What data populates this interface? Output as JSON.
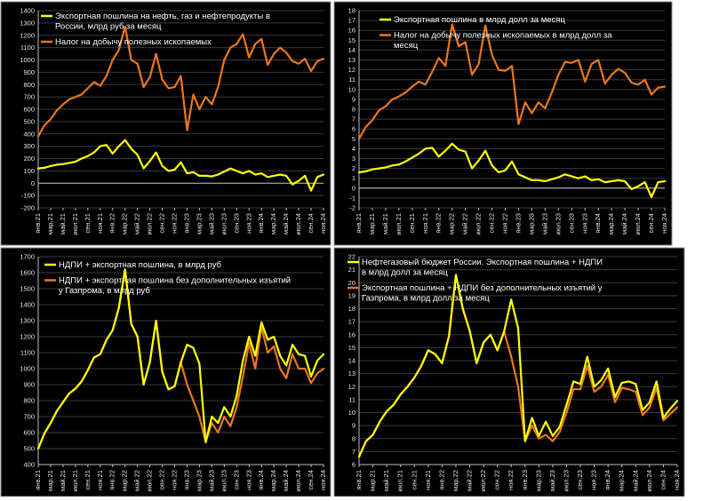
{
  "colors": {
    "page": "#ffffff",
    "panel": "#000000",
    "border": "#8c8c8c",
    "grid": "#3a3a3a",
    "text": "#ffffff",
    "tick_text": "#e6e6e6",
    "yellow": "#ffff00",
    "orange": "#e9781f"
  },
  "x_tick_labels": [
    "янв.21",
    "мар.21",
    "май.21",
    "июл.21",
    "сен.21",
    "ноя.21",
    "янв.22",
    "мар.22",
    "май.22",
    "июл.22",
    "сен.22",
    "ноя.22",
    "янв.23",
    "мар.23",
    "май.23",
    "июл.23",
    "сен.23",
    "ноя.23",
    "янв.24",
    "мар.24",
    "май.24",
    "июл.24",
    "сен.24",
    "ноя.24"
  ],
  "chart_data": [
    {
      "type": "line",
      "x": [
        "янв.21",
        "фев.21",
        "мар.21",
        "апр.21",
        "май.21",
        "июн.21",
        "июл.21",
        "авг.21",
        "сен.21",
        "окт.21",
        "ноя.21",
        "дек.21",
        "янв.22",
        "фев.22",
        "мар.22",
        "апр.22",
        "май.22",
        "июн.22",
        "июл.22",
        "авг.22",
        "сен.22",
        "окт.22",
        "ноя.22",
        "дек.22",
        "янв.23",
        "фев.23",
        "мар.23",
        "апр.23",
        "май.23",
        "июн.23",
        "июл.23",
        "авг.23",
        "сен.23",
        "окт.23",
        "ноя.23",
        "дек.23",
        "янв.24",
        "фев.24",
        "мар.24",
        "апр.24",
        "май.24",
        "июн.24",
        "июл.24",
        "авг.24",
        "сен.24",
        "окт.24",
        "ноя.24"
      ],
      "ylim": [
        -200,
        1400
      ],
      "yticks": [
        -200,
        -100,
        0,
        100,
        200,
        300,
        400,
        500,
        600,
        700,
        800,
        900,
        1000,
        1100,
        1200,
        1300,
        1400
      ],
      "grid": true,
      "legend_position": "top-left",
      "series": [
        {
          "name": "Экспортная пошлина на нефть, газ и нефтепродукты в России, млрд руб за месяц",
          "color_key": "yellow",
          "values": [
            120,
            125,
            140,
            150,
            155,
            165,
            175,
            200,
            220,
            250,
            300,
            310,
            240,
            300,
            350,
            280,
            230,
            120,
            180,
            250,
            140,
            100,
            110,
            170,
            80,
            90,
            60,
            60,
            55,
            70,
            95,
            120,
            100,
            80,
            100,
            70,
            80,
            50,
            60,
            70,
            60,
            -10,
            20,
            60,
            -60,
            50,
            70
          ]
        },
        {
          "name": "Налог на добычу полезных ископаемых",
          "color_key": "orange",
          "values": [
            380,
            470,
            520,
            590,
            640,
            680,
            700,
            720,
            770,
            820,
            790,
            870,
            1000,
            1080,
            1270,
            1000,
            970,
            780,
            860,
            1050,
            840,
            770,
            780,
            870,
            430,
            720,
            600,
            700,
            640,
            780,
            1000,
            1100,
            1130,
            1210,
            1020,
            1130,
            1170,
            960,
            1050,
            1100,
            1060,
            990,
            970,
            1010,
            910,
            990,
            1010
          ]
        }
      ]
    },
    {
      "type": "line",
      "x": [
        "янв.21",
        "фев.21",
        "мар.21",
        "апр.21",
        "май.21",
        "июн.21",
        "июл.21",
        "авг.21",
        "сен.21",
        "окт.21",
        "ноя.21",
        "дек.21",
        "янв.22",
        "фев.22",
        "мар.22",
        "апр.22",
        "май.22",
        "июн.22",
        "июл.22",
        "авг.22",
        "сен.22",
        "окт.22",
        "ноя.22",
        "дек.22",
        "янв.23",
        "фев.23",
        "мар.23",
        "апр.23",
        "май.23",
        "июн.23",
        "июл.23",
        "авг.23",
        "сен.23",
        "окт.23",
        "ноя.23",
        "дек.23",
        "янв.24",
        "фев.24",
        "мар.24",
        "апр.24",
        "май.24",
        "июн.24",
        "июл.24",
        "авг.24",
        "сен.24",
        "окт.24",
        "ноя.24"
      ],
      "ylim": [
        -2,
        18
      ],
      "yticks": [
        -2,
        -1,
        0,
        1,
        2,
        3,
        4,
        5,
        6,
        7,
        8,
        9,
        10,
        11,
        12,
        13,
        14,
        15,
        16,
        17,
        18
      ],
      "grid": true,
      "legend_position": "top-left",
      "series": [
        {
          "name": "Экспортная пошлина в млрд долл за месяц",
          "color_key": "yellow",
          "values": [
            1.6,
            1.7,
            1.9,
            2.0,
            2.1,
            2.3,
            2.4,
            2.7,
            3.1,
            3.5,
            4.0,
            4.1,
            3.2,
            3.8,
            4.5,
            3.9,
            3.7,
            2.0,
            2.8,
            3.8,
            2.3,
            1.6,
            1.8,
            2.7,
            1.4,
            1.1,
            0.8,
            0.8,
            0.7,
            0.9,
            1.1,
            1.4,
            1.2,
            1.0,
            1.2,
            0.8,
            0.9,
            0.6,
            0.7,
            0.8,
            0.7,
            -0.1,
            0.2,
            0.6,
            -0.9,
            0.6,
            0.7
          ]
        },
        {
          "name": "Налог на добычу полезных ископаемых в млрд долл за месяц",
          "color_key": "orange",
          "values": [
            5.0,
            6.2,
            6.9,
            7.9,
            8.3,
            9.0,
            9.3,
            9.7,
            10.3,
            10.8,
            10.5,
            11.8,
            13.2,
            12.4,
            16.6,
            14.4,
            14.8,
            11.5,
            12.6,
            16.5,
            13.5,
            12.0,
            11.9,
            12.4,
            6.5,
            8.7,
            7.6,
            8.7,
            8.1,
            9.7,
            11.5,
            12.8,
            12.7,
            13.0,
            10.8,
            12.6,
            13.0,
            10.6,
            11.5,
            12.1,
            11.7,
            10.7,
            10.5,
            11.0,
            9.5,
            10.2,
            10.3
          ]
        }
      ]
    },
    {
      "type": "line",
      "x": [
        "янв.21",
        "фев.21",
        "мар.21",
        "апр.21",
        "май.21",
        "июн.21",
        "июл.21",
        "авг.21",
        "сен.21",
        "окт.21",
        "ноя.21",
        "дек.21",
        "янв.22",
        "фев.22",
        "мар.22",
        "апр.22",
        "май.22",
        "июн.22",
        "июл.22",
        "авг.22",
        "сен.22",
        "окт.22",
        "ноя.22",
        "дек.22",
        "янв.23",
        "фев.23",
        "мар.23",
        "апр.23",
        "май.23",
        "июн.23",
        "июл.23",
        "авг.23",
        "сен.23",
        "окт.23",
        "ноя.23",
        "дек.23",
        "янв.24",
        "фев.24",
        "мар.24",
        "апр.24",
        "май.24",
        "июн.24",
        "июл.24",
        "авг.24",
        "сен.24",
        "окт.24",
        "ноя.24"
      ],
      "ylim": [
        400,
        1700
      ],
      "yticks": [
        400,
        500,
        600,
        700,
        800,
        900,
        1000,
        1100,
        1200,
        1300,
        1400,
        1500,
        1600,
        1700
      ],
      "grid": true,
      "legend_position": "top-left",
      "series": [
        {
          "name": "НДПИ + экспортная пошлина, в млрд руб",
          "color_key": "yellow",
          "values": [
            500,
            595,
            660,
            735,
            790,
            845,
            875,
            920,
            990,
            1070,
            1090,
            1180,
            1240,
            1380,
            1620,
            1280,
            1200,
            900,
            1040,
            1300,
            980,
            870,
            890,
            1040,
            1150,
            1130,
            1030,
            540,
            700,
            660,
            760,
            700,
            830,
            1050,
            1200,
            1080,
            1290,
            1180,
            1200,
            1080,
            1020,
            1150,
            1090,
            1080,
            950,
            1050,
            1090
          ]
        },
        {
          "name": "НДПИ + экспортная пошлина без дополнительных изъятий у Газпрома, в млрд руб",
          "color_key": "orange",
          "values": [
            500,
            595,
            660,
            735,
            790,
            845,
            875,
            920,
            990,
            1070,
            1090,
            1180,
            1240,
            1380,
            1620,
            1280,
            1200,
            900,
            1040,
            1300,
            980,
            870,
            890,
            1040,
            900,
            800,
            700,
            540,
            660,
            600,
            700,
            640,
            760,
            950,
            1160,
            1000,
            1260,
            1100,
            1140,
            1000,
            940,
            1090,
            1000,
            1000,
            910,
            970,
            1000
          ]
        }
      ]
    },
    {
      "type": "line",
      "x": [
        "янв.21",
        "фев.21",
        "мар.21",
        "апр.21",
        "май.21",
        "июн.21",
        "июл.21",
        "авг.21",
        "сен.21",
        "окт.21",
        "ноя.21",
        "дек.21",
        "янв.22",
        "фев.22",
        "мар.22",
        "апр.22",
        "май.22",
        "июн.22",
        "июл.22",
        "авг.22",
        "сен.22",
        "окт.22",
        "ноя.22",
        "дек.22",
        "янв.23",
        "фев.23",
        "мар.23",
        "апр.23",
        "май.23",
        "июн.23",
        "июл.23",
        "авг.23",
        "сен.23",
        "окт.23",
        "ноя.23",
        "дек.23",
        "янв.24",
        "фев.24",
        "мар.24",
        "апр.24",
        "май.24",
        "июн.24",
        "июл.24",
        "авг.24",
        "сен.24",
        "окт.24",
        "ноя.24"
      ],
      "ylim": [
        6,
        22
      ],
      "yticks": [
        6,
        7,
        8,
        9,
        10,
        11,
        12,
        13,
        14,
        15,
        16,
        17,
        18,
        19,
        20,
        21,
        22
      ],
      "grid": true,
      "legend_position": "top-left",
      "series": [
        {
          "name": "Нефтегазовый бюджет России. Экспортная пошлина + НДПИ в млрд долл за месяц",
          "color_key": "yellow",
          "values": [
            6.6,
            7.8,
            8.3,
            9.3,
            10.1,
            10.6,
            11.4,
            12.0,
            12.7,
            13.6,
            14.8,
            14.5,
            13.8,
            15.9,
            20.6,
            18.0,
            16.3,
            13.8,
            15.4,
            16.0,
            14.8,
            16.3,
            18.7,
            16.5,
            7.8,
            9.6,
            8.2,
            9.3,
            8.2,
            8.9,
            10.6,
            12.4,
            12.2,
            14.3,
            12.0,
            12.5,
            13.4,
            11.2,
            12.3,
            12.4,
            12.2,
            10.2,
            10.8,
            12.4,
            9.6,
            10.3,
            10.9
          ]
        },
        {
          "name": "Экспортная пошлина + НДПИ без дополнительных изъятий у Газпрома, в млрд долл за месяц",
          "color_key": "orange",
          "values": [
            6.6,
            7.8,
            8.3,
            9.3,
            10.1,
            10.6,
            11.4,
            12.0,
            12.7,
            13.6,
            14.8,
            14.5,
            13.8,
            15.9,
            20.6,
            18.0,
            16.3,
            13.8,
            15.4,
            16.0,
            14.8,
            16.2,
            14.3,
            12.0,
            7.8,
            9.0,
            8.0,
            8.3,
            7.8,
            8.5,
            10.0,
            11.8,
            11.8,
            13.6,
            11.6,
            12.0,
            12.9,
            10.8,
            11.9,
            11.8,
            11.6,
            9.8,
            10.4,
            11.9,
            9.4,
            9.9,
            10.4
          ]
        }
      ]
    }
  ]
}
